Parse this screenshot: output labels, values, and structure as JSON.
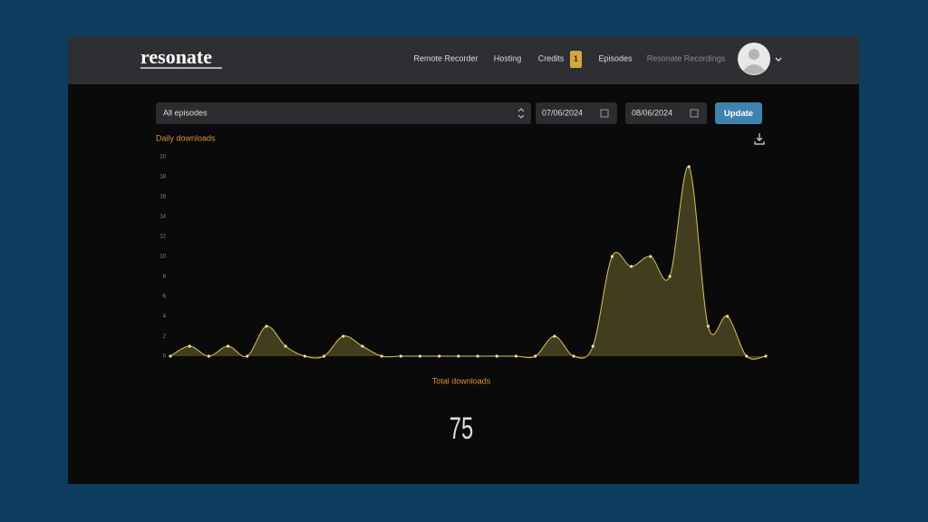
{
  "header": {
    "logo": "resonate",
    "nav": [
      "Remote Recorder",
      "Hosting",
      "Credits",
      "Episodes",
      "Resonate Recordings"
    ],
    "credits_badge": 1
  },
  "filters": {
    "episode": "All episodes",
    "start_date": "07/06/2024",
    "end_date": "08/06/2024",
    "button": "Update"
  },
  "chart_data": {
    "type": "area",
    "title": "Daily downloads",
    "values": [
      0,
      1,
      0,
      1,
      0,
      3,
      1,
      0,
      0,
      2,
      1,
      0,
      0,
      0,
      0,
      0,
      0,
      0,
      0,
      0,
      2,
      0,
      1,
      10,
      9,
      10,
      8,
      19,
      3,
      4,
      0,
      0
    ],
    "ylim": [
      0,
      20
    ],
    "yticks": [
      0,
      2,
      4,
      6,
      8,
      10,
      12,
      14,
      16,
      18,
      20
    ],
    "color": "#d8c25a"
  },
  "total": {
    "label": "Total downloads",
    "value": 75
  }
}
